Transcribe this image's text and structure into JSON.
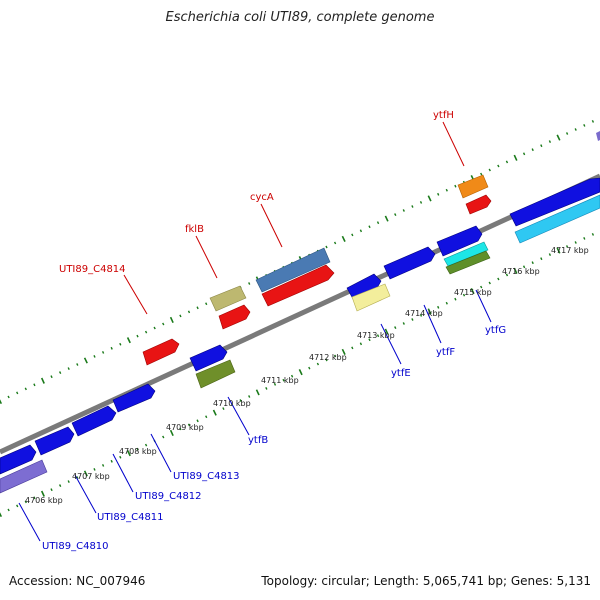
{
  "title": "Escherichia coli UTI89, complete genome",
  "footer": {
    "accession": "Accession: NC_007946",
    "summary": "Topology: circular; Length: 5,065,741 bp; Genes: 5,131"
  },
  "colors": {
    "backbone": "#8a8a8a",
    "ticks": "#1a7a1a",
    "top_label": "#cc0000",
    "bottom_label": "#0000cc",
    "kbp_label": "#222222"
  },
  "kbp_labels": [
    "4706 kbp",
    "4707 kbp",
    "4708 kbp",
    "4709 kbp",
    "4710 kbp",
    "4711 kbp",
    "4712 kbp",
    "4713 kbp",
    "4714 kbp",
    "4715 kbp",
    "4716 kbp",
    "4717 kbp"
  ],
  "top_labels": [
    "UTI89_C4814",
    "fklB",
    "cycA",
    "ytfH"
  ],
  "bottom_labels": [
    "UTI89_C4810",
    "UTI89_C4811",
    "UTI89_C4812",
    "UTI89_C4813",
    "ytfB",
    "ytfE",
    "ytfF",
    "ytfG"
  ]
}
